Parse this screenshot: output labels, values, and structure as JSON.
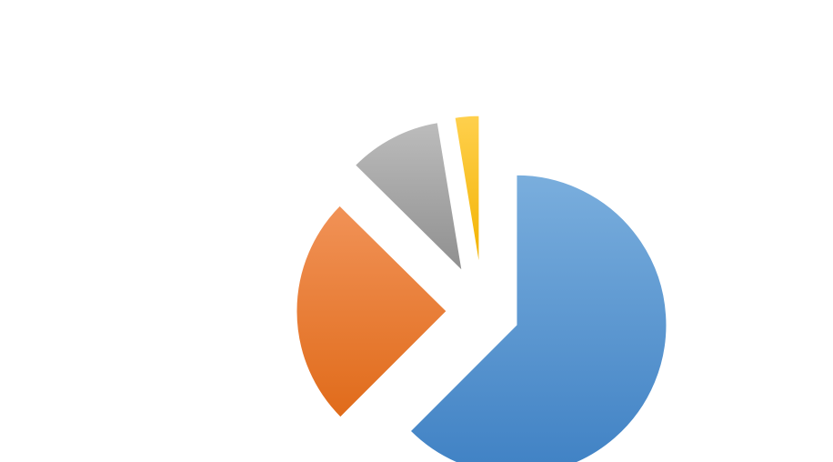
{
  "chart_data": {
    "type": "pie",
    "exploded": true,
    "title": "",
    "values": [
      62.5,
      24.9,
      10.0,
      2.6
    ],
    "colors": [
      "#5b9bd5",
      "#ed7d31",
      "#a5a5a5",
      "#ffc000"
    ],
    "colors_light": [
      "#7aaedd",
      "#f19257",
      "#bcbcbc",
      "#ffd04d"
    ],
    "colors_dark": [
      "#3f81c4",
      "#e06b1a",
      "#8f8f8f",
      "#f2b200"
    ],
    "legend": "none",
    "data_labels": "none"
  }
}
